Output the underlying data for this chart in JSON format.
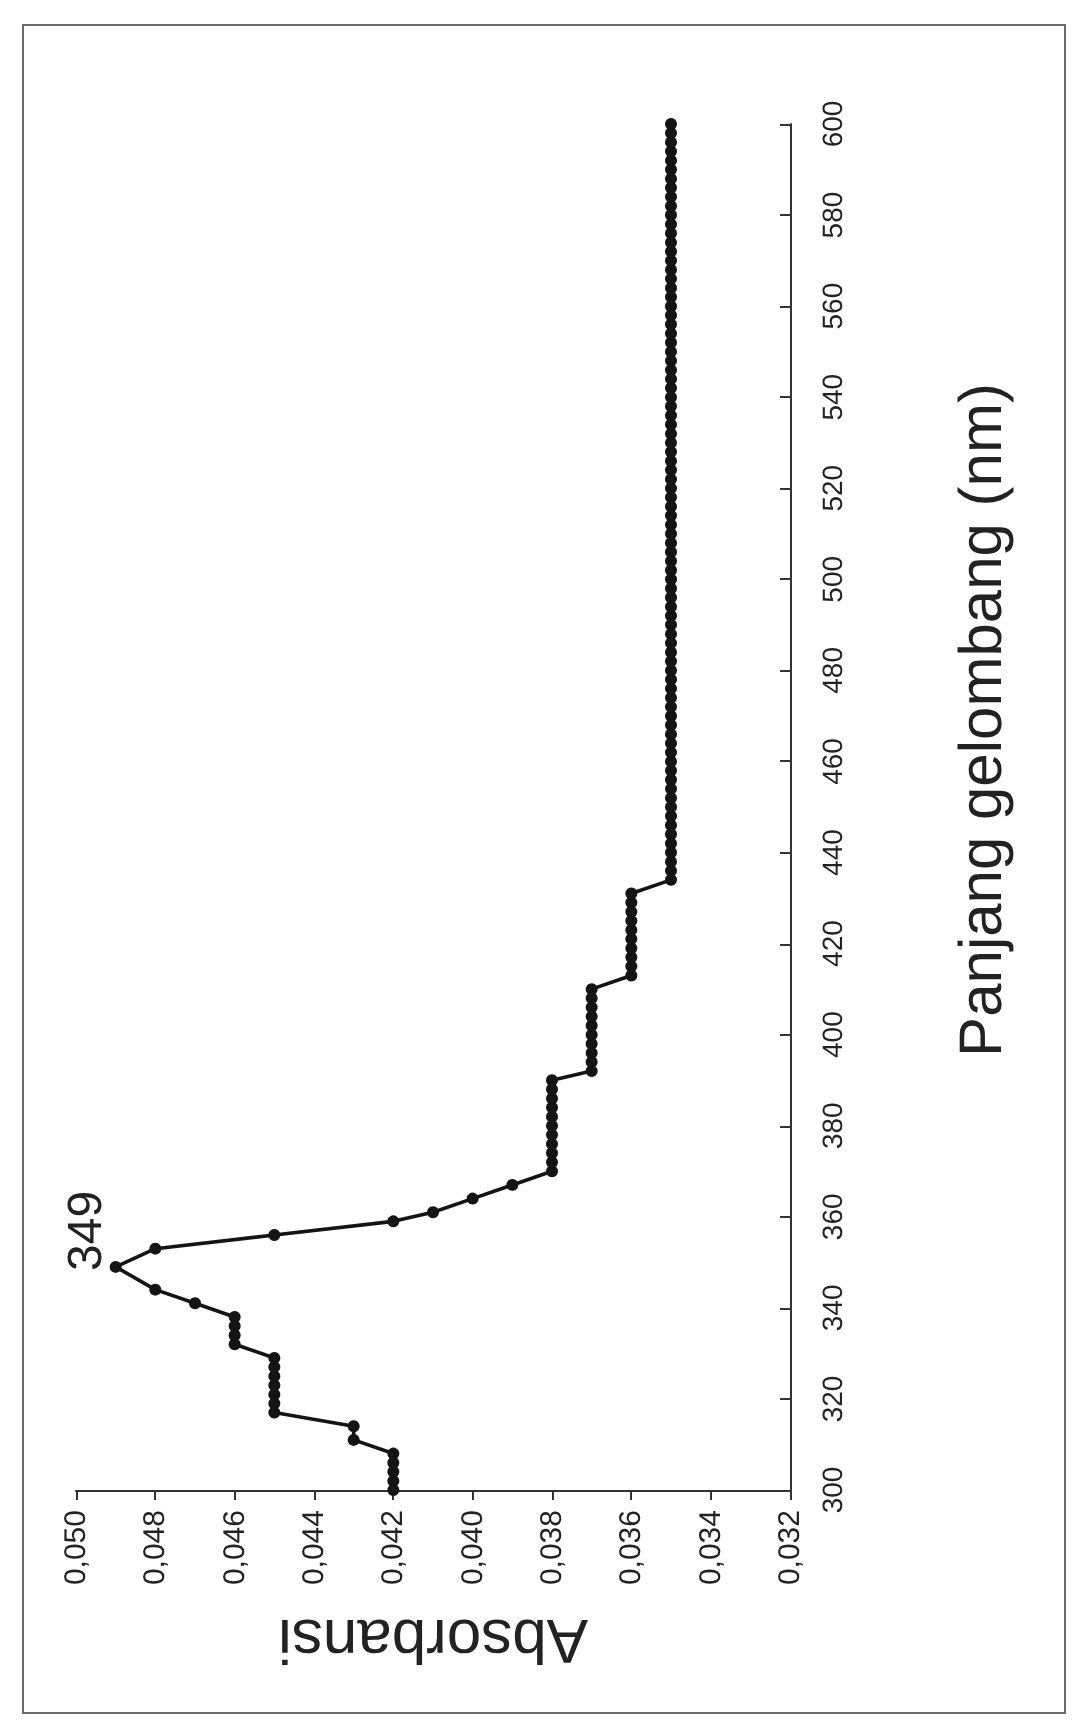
{
  "chart_data": {
    "type": "line",
    "xlabel": "Absorbansi",
    "ylabel": "Panjang gelombang (nm)",
    "series": [
      {
        "color": "#141414",
        "x": [
          0.042,
          0.042,
          0.042,
          0.042,
          0.042,
          0.043,
          0.043,
          0.045,
          0.045,
          0.045,
          0.045,
          0.045,
          0.045,
          0.045,
          0.046,
          0.046,
          0.046,
          0.046,
          0.047,
          0.048,
          0.049,
          0.048,
          0.045,
          0.042,
          0.041,
          0.04,
          0.039,
          0.038,
          0.038,
          0.038,
          0.038,
          0.038,
          0.038,
          0.038,
          0.038,
          0.038,
          0.038,
          0.038,
          0.037,
          0.037,
          0.037,
          0.037,
          0.037,
          0.037,
          0.037,
          0.037,
          0.037,
          0.037,
          0.036,
          0.036,
          0.036,
          0.036,
          0.036,
          0.036,
          0.036,
          0.036,
          0.036,
          0.036,
          0.035,
          0.035,
          0.035,
          0.035,
          0.035,
          0.035,
          0.035,
          0.035,
          0.035,
          0.035,
          0.035,
          0.035,
          0.035,
          0.035,
          0.035,
          0.035,
          0.035,
          0.035,
          0.035,
          0.035,
          0.035,
          0.035,
          0.035,
          0.035,
          0.035,
          0.035,
          0.035,
          0.035,
          0.035,
          0.035,
          0.035,
          0.035,
          0.035,
          0.035,
          0.035,
          0.035,
          0.035,
          0.035,
          0.035,
          0.035,
          0.035,
          0.035,
          0.035,
          0.035,
          0.035,
          0.035,
          0.035,
          0.035,
          0.035,
          0.035,
          0.035,
          0.035,
          0.035,
          0.035,
          0.035,
          0.035,
          0.035,
          0.035,
          0.035,
          0.035,
          0.035,
          0.035,
          0.035,
          0.035,
          0.035,
          0.035,
          0.035,
          0.035,
          0.035,
          0.035,
          0.035,
          0.035,
          0.035,
          0.035,
          0.035,
          0.035,
          0.035,
          0.035,
          0.035,
          0.035,
          0.035,
          0.035,
          0.035,
          0.035
        ],
        "values": [
          300,
          302,
          304,
          306,
          308,
          311,
          314,
          317,
          319,
          321,
          323,
          325,
          327,
          329,
          332,
          334,
          336,
          338,
          341,
          344,
          349,
          353,
          356,
          359,
          361,
          364,
          367,
          370,
          372,
          374,
          376,
          378,
          380,
          382,
          384,
          386,
          388,
          390,
          392,
          394,
          396,
          398,
          400,
          402,
          404,
          406,
          408,
          410,
          413,
          415,
          417,
          419,
          421,
          423,
          425,
          427,
          429,
          431,
          434,
          436,
          438,
          440,
          442,
          444,
          446,
          448,
          450,
          452,
          454,
          456,
          458,
          460,
          462,
          464,
          466,
          468,
          470,
          472,
          474,
          476,
          478,
          480,
          482,
          484,
          486,
          488,
          490,
          492,
          494,
          496,
          498,
          500,
          502,
          504,
          506,
          508,
          510,
          512,
          514,
          516,
          518,
          520,
          522,
          524,
          526,
          528,
          530,
          532,
          534,
          536,
          538,
          540,
          542,
          544,
          546,
          548,
          550,
          552,
          554,
          556,
          558,
          560,
          562,
          564,
          566,
          568,
          570,
          572,
          574,
          576,
          578,
          580,
          582,
          584,
          586,
          588,
          590,
          592,
          594,
          596,
          598,
          600
        ]
      }
    ],
    "xlim": [
      0.05,
      0.032
    ],
    "xticks": [
      {
        "value": 0.05,
        "label": "0,050"
      },
      {
        "value": 0.048,
        "label": "0,048"
      },
      {
        "value": 0.046,
        "label": "0,046"
      },
      {
        "value": 0.044,
        "label": "0,044"
      },
      {
        "value": 0.042,
        "label": "0,042"
      },
      {
        "value": 0.04,
        "label": "0,040"
      },
      {
        "value": 0.038,
        "label": "0,038"
      },
      {
        "value": 0.036,
        "label": "0,036"
      },
      {
        "value": 0.034,
        "label": "0,034"
      },
      {
        "value": 0.032,
        "label": "0,032"
      }
    ],
    "ylim": [
      300,
      600
    ],
    "yticks": [
      300,
      320,
      340,
      360,
      380,
      400,
      420,
      440,
      460,
      480,
      500,
      520,
      540,
      560,
      580,
      600
    ],
    "marker": "circle",
    "line_style": "solid",
    "annotations": [
      {
        "text": "349",
        "x": 0.049,
        "y": 349
      }
    ]
  }
}
